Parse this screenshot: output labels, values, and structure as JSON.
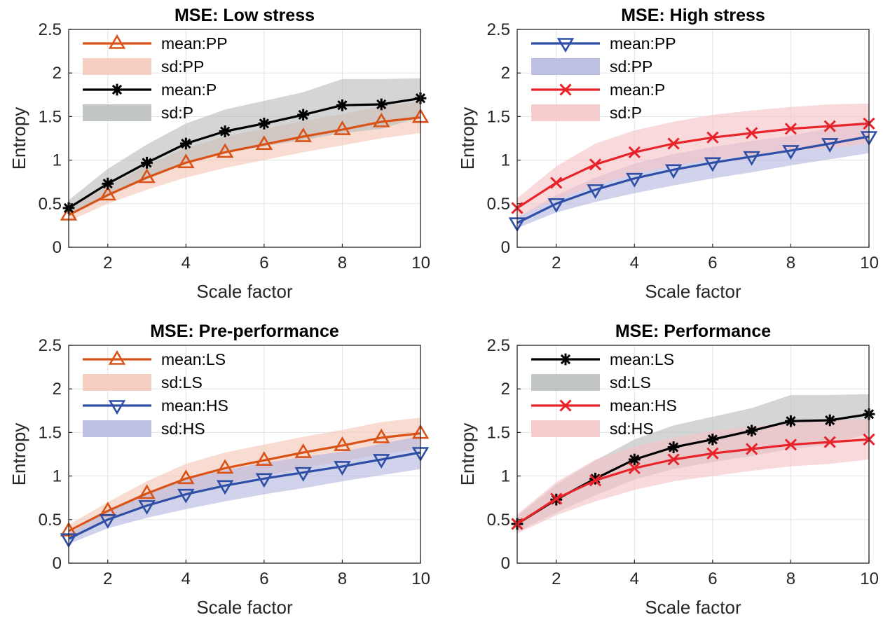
{
  "chart_data": [
    {
      "type": "line",
      "title": "MSE: Low stress",
      "xlabel": "Scale factor",
      "ylabel": "Entropy",
      "xlim": [
        1,
        10
      ],
      "ylim": [
        0,
        2.5
      ],
      "xticks": [
        "2",
        "4",
        "6",
        "8",
        "10"
      ],
      "yticks": [
        "0",
        "0.5",
        "1",
        "1.5",
        "2",
        "2.5"
      ],
      "grid": true,
      "legend_position": "top-left",
      "x": [
        1,
        2,
        3,
        4,
        5,
        6,
        7,
        8,
        9,
        10
      ],
      "series": [
        {
          "name": "mean:PP",
          "sd_name": "sd:PP",
          "color": "#d95319",
          "band_color": "#f3c7b6",
          "marker": "triangle-up",
          "values": [
            0.37,
            0.6,
            0.8,
            0.97,
            1.09,
            1.18,
            1.27,
            1.35,
            1.44,
            1.49
          ],
          "lower": [
            0.3,
            0.5,
            0.66,
            0.8,
            0.91,
            1.0,
            1.09,
            1.17,
            1.25,
            1.31
          ],
          "upper": [
            0.44,
            0.7,
            0.94,
            1.14,
            1.27,
            1.36,
            1.45,
            1.53,
            1.62,
            1.67
          ]
        },
        {
          "name": "mean:P",
          "sd_name": "sd:P",
          "color": "#000000",
          "band_color": "#b9bcbc",
          "marker": "asterisk",
          "values": [
            0.45,
            0.73,
            0.97,
            1.19,
            1.33,
            1.42,
            1.52,
            1.63,
            1.64,
            1.71
          ],
          "lower": [
            0.36,
            0.58,
            0.78,
            0.96,
            1.08,
            1.16,
            1.23,
            1.31,
            1.36,
            1.49
          ],
          "upper": [
            0.54,
            0.9,
            1.18,
            1.42,
            1.58,
            1.68,
            1.78,
            1.93,
            1.93,
            1.94
          ]
        }
      ]
    },
    {
      "type": "line",
      "title": "MSE: High stress",
      "xlabel": "Scale factor",
      "ylabel": "Entropy",
      "xlim": [
        1,
        10
      ],
      "ylim": [
        0,
        2.5
      ],
      "xticks": [
        "2",
        "4",
        "6",
        "8",
        "10"
      ],
      "yticks": [
        "0",
        "0.5",
        "1",
        "1.5",
        "2",
        "2.5"
      ],
      "grid": true,
      "legend_position": "top-left",
      "x": [
        1,
        2,
        3,
        4,
        5,
        6,
        7,
        8,
        9,
        10
      ],
      "series": [
        {
          "name": "mean:PP",
          "sd_name": "sd:PP",
          "color": "#2e4fa5",
          "band_color": "#b4b6de",
          "marker": "triangle-down",
          "values": [
            0.28,
            0.5,
            0.66,
            0.79,
            0.89,
            0.97,
            1.04,
            1.11,
            1.19,
            1.27
          ],
          "lower": [
            0.22,
            0.4,
            0.52,
            0.62,
            0.71,
            0.79,
            0.86,
            0.94,
            1.01,
            1.08
          ],
          "upper": [
            0.34,
            0.6,
            0.8,
            0.96,
            1.07,
            1.15,
            1.22,
            1.28,
            1.37,
            1.46
          ]
        },
        {
          "name": "mean:P",
          "sd_name": "sd:P",
          "color": "#e8232a",
          "band_color": "#f5c4c6",
          "marker": "x",
          "values": [
            0.45,
            0.74,
            0.95,
            1.09,
            1.19,
            1.26,
            1.31,
            1.36,
            1.39,
            1.42
          ],
          "lower": [
            0.34,
            0.55,
            0.71,
            0.84,
            0.94,
            1.0,
            1.06,
            1.11,
            1.14,
            1.19
          ],
          "upper": [
            0.56,
            0.93,
            1.19,
            1.34,
            1.44,
            1.52,
            1.57,
            1.61,
            1.64,
            1.65
          ]
        }
      ]
    },
    {
      "type": "line",
      "title": "MSE: Pre-performance",
      "xlabel": "Scale factor",
      "ylabel": "Entropy",
      "xlim": [
        1,
        10
      ],
      "ylim": [
        0,
        2.5
      ],
      "xticks": [
        "2",
        "4",
        "6",
        "8",
        "10"
      ],
      "yticks": [
        "0",
        "0.5",
        "1",
        "1.5",
        "2",
        "2.5"
      ],
      "grid": true,
      "legend_position": "top-left",
      "x": [
        1,
        2,
        3,
        4,
        5,
        6,
        7,
        8,
        9,
        10
      ],
      "series": [
        {
          "name": "mean:LS",
          "sd_name": "sd:LS",
          "color": "#d95319",
          "band_color": "#f3c7b6",
          "marker": "triangle-up",
          "values": [
            0.37,
            0.6,
            0.8,
            0.97,
            1.09,
            1.18,
            1.27,
            1.35,
            1.44,
            1.49
          ],
          "lower": [
            0.3,
            0.5,
            0.66,
            0.8,
            0.91,
            1.0,
            1.09,
            1.17,
            1.25,
            1.31
          ],
          "upper": [
            0.44,
            0.7,
            0.94,
            1.14,
            1.27,
            1.36,
            1.45,
            1.53,
            1.62,
            1.67
          ]
        },
        {
          "name": "mean:HS",
          "sd_name": "sd:HS",
          "color": "#2e4fa5",
          "band_color": "#b4b6de",
          "marker": "triangle-down",
          "values": [
            0.28,
            0.5,
            0.66,
            0.79,
            0.89,
            0.97,
            1.04,
            1.11,
            1.19,
            1.27
          ],
          "lower": [
            0.22,
            0.4,
            0.52,
            0.62,
            0.71,
            0.79,
            0.86,
            0.94,
            1.01,
            1.08
          ],
          "upper": [
            0.34,
            0.6,
            0.8,
            0.96,
            1.07,
            1.15,
            1.22,
            1.28,
            1.37,
            1.46
          ]
        }
      ]
    },
    {
      "type": "line",
      "title": "MSE: Performance",
      "xlabel": "Scale factor",
      "ylabel": "Entropy",
      "xlim": [
        1,
        10
      ],
      "ylim": [
        0,
        2.5
      ],
      "xticks": [
        "2",
        "4",
        "6",
        "8",
        "10"
      ],
      "yticks": [
        "0",
        "0.5",
        "1",
        "1.5",
        "2",
        "2.5"
      ],
      "grid": true,
      "legend_position": "top-left",
      "x": [
        1,
        2,
        3,
        4,
        5,
        6,
        7,
        8,
        9,
        10
      ],
      "series": [
        {
          "name": "mean:LS",
          "sd_name": "sd:LS",
          "color": "#000000",
          "band_color": "#b9bcbc",
          "marker": "asterisk",
          "values": [
            0.45,
            0.73,
            0.97,
            1.19,
            1.33,
            1.42,
            1.52,
            1.63,
            1.64,
            1.71
          ],
          "lower": [
            0.36,
            0.58,
            0.78,
            0.96,
            1.08,
            1.16,
            1.23,
            1.31,
            1.36,
            1.49
          ],
          "upper": [
            0.54,
            0.9,
            1.18,
            1.42,
            1.58,
            1.68,
            1.78,
            1.93,
            1.93,
            1.94
          ]
        },
        {
          "name": "mean:HS",
          "sd_name": "sd:HS",
          "color": "#e8232a",
          "band_color": "#f5c4c6",
          "marker": "x",
          "values": [
            0.45,
            0.74,
            0.95,
            1.09,
            1.19,
            1.26,
            1.31,
            1.36,
            1.39,
            1.42
          ],
          "lower": [
            0.34,
            0.55,
            0.71,
            0.84,
            0.94,
            1.0,
            1.06,
            1.11,
            1.14,
            1.19
          ],
          "upper": [
            0.56,
            0.93,
            1.19,
            1.34,
            1.44,
            1.52,
            1.57,
            1.61,
            1.64,
            1.65
          ]
        }
      ]
    }
  ]
}
